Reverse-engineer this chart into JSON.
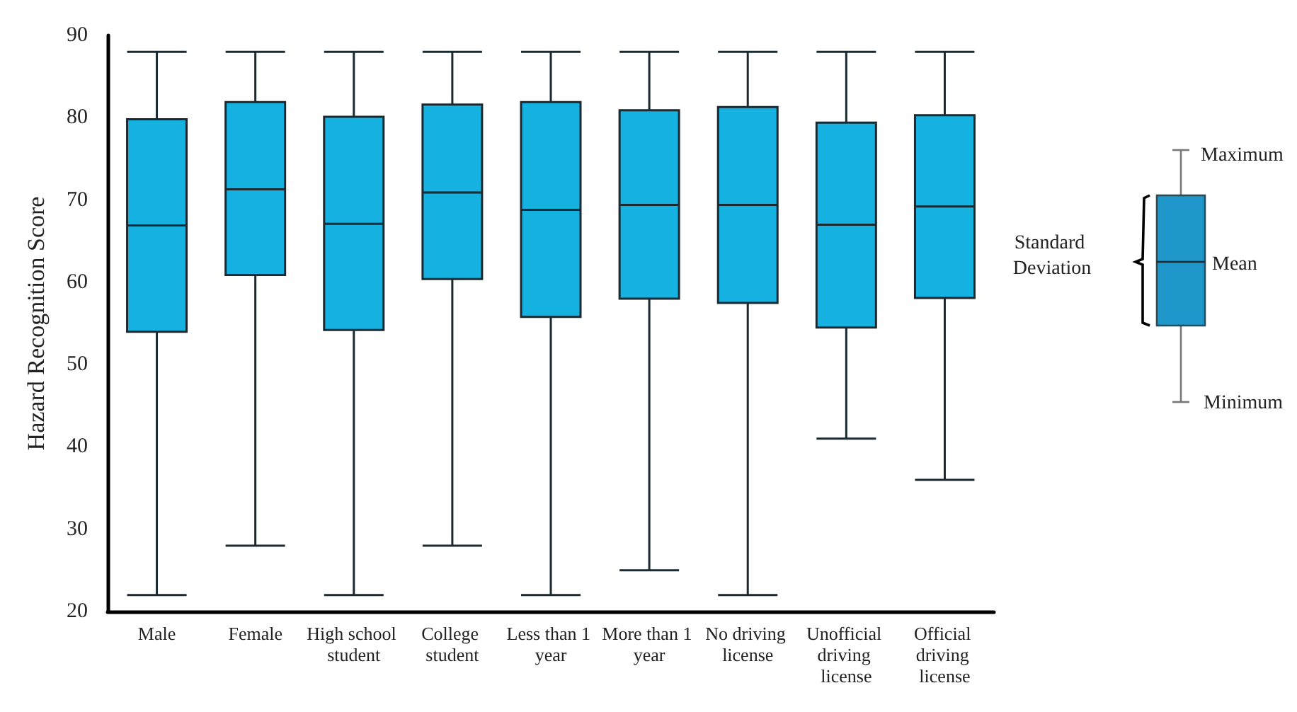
{
  "chart_data": {
    "type": "box",
    "ylabel": "Hazard Recognition Score",
    "categories": [
      "Male",
      "Female",
      "High school student",
      "College student",
      "Less than 1 year",
      "More than 1 year",
      "No driving license",
      "Unofficial driving license",
      "Official driving license"
    ],
    "color": "#15b1e0",
    "boxes": [
      {
        "low": 22,
        "q1": 54.0,
        "median": 66.9,
        "q3": 79.8,
        "high": 88
      },
      {
        "low": 28,
        "q1": 60.9,
        "median": 71.3,
        "q3": 81.9,
        "high": 88
      },
      {
        "low": 22,
        "q1": 54.2,
        "median": 67.1,
        "q3": 80.1,
        "high": 88
      },
      {
        "low": 28,
        "q1": 60.4,
        "median": 70.9,
        "q3": 81.6,
        "high": 88
      },
      {
        "low": 22,
        "q1": 55.8,
        "median": 68.8,
        "q3": 81.9,
        "high": 88
      },
      {
        "low": 25,
        "q1": 58.0,
        "median": 69.4,
        "q3": 80.9,
        "high": 88
      },
      {
        "low": 22,
        "q1": 57.5,
        "median": 69.4,
        "q3": 81.3,
        "high": 88
      },
      {
        "low": 41,
        "q1": 54.5,
        "median": 67.0,
        "q3": 79.4,
        "high": 88
      },
      {
        "low": 36,
        "q1": 58.1,
        "median": 69.2,
        "q3": 80.3,
        "high": 88
      }
    ],
    "ylim": [
      20,
      90
    ],
    "yticks": [
      20,
      30,
      40,
      50,
      60,
      70,
      80,
      90
    ],
    "grid": false,
    "annotations": [
      "Maximum",
      "Mean",
      "Minimum",
      "Standard Deviation"
    ]
  }
}
